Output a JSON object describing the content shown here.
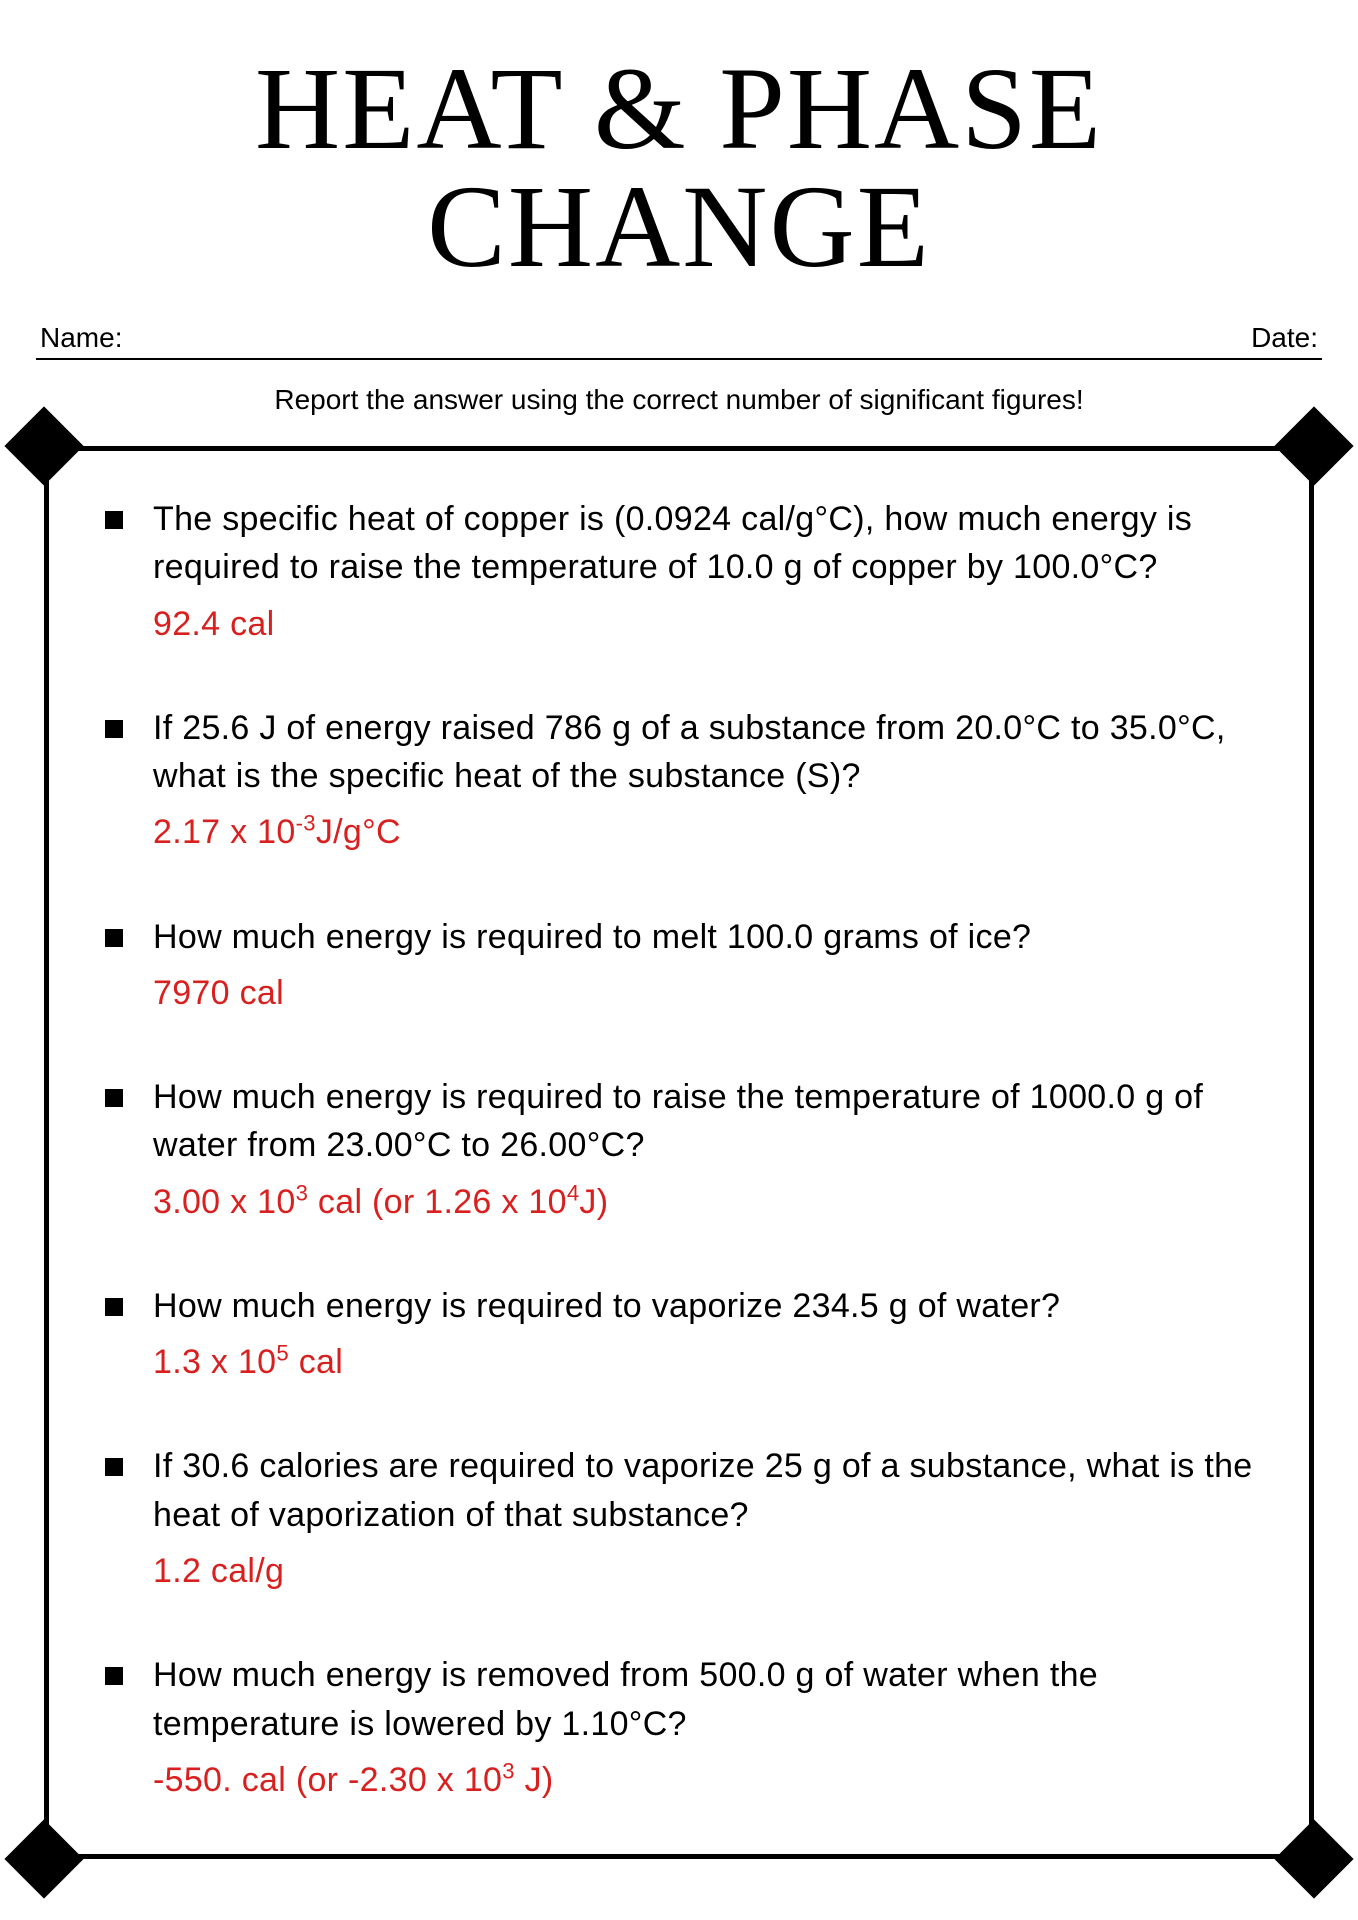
{
  "title": "HEAT & PHASE CHANGE",
  "labels": {
    "name": "Name:",
    "date": "Date:"
  },
  "instruction": "Report the answer using the correct number of significant figures!",
  "answer_color": "#d8201f",
  "text_color": "#000000",
  "background_color": "#ffffff",
  "title_fontsize": 118,
  "body_fontsize": 34,
  "problems": [
    {
      "question": "The specific heat of copper is (0.0924 cal/g°C), how much energy is required to raise the temperature of 10.0 g of copper by 100.0°C?",
      "answer_html": "92.4 cal",
      "answer_plain": "92.4 cal"
    },
    {
      "question": "If 25.6 J of energy raised 786 g of a substance from 20.0°C to 35.0°C, what is the specific heat of the substance (S)?",
      "answer_html": "2.17 x 10<sup>-3</sup>J/g°C",
      "answer_plain": "2.17 x 10^-3 J/g°C"
    },
    {
      "question": "How much energy is required to melt 100.0 grams of ice?",
      "answer_html": "7970 cal",
      "answer_plain": "7970 cal"
    },
    {
      "question": "How much energy is required to raise the temperature of 1000.0 g of water from 23.00°C to 26.00°C?",
      "answer_html": "3.00 x 10<sup>3</sup> cal (or 1.26 x 10<sup>4</sup>J)",
      "answer_plain": "3.00 x 10^3 cal (or 1.26 x 10^4 J)"
    },
    {
      "question": "How much energy is required to vaporize 234.5 g of water?",
      "answer_html": "1.3 x 10<sup>5</sup> cal",
      "answer_plain": "1.3 x 10^5 cal"
    },
    {
      "question": "If 30.6 calories are required to vaporize 25 g of a substance, what is the heat of vaporization of that substance?",
      "answer_html": "1.2 cal/g",
      "answer_plain": "1.2 cal/g"
    },
    {
      "question": "How much energy is removed from 500.0 g of water when the temperature is lowered by 1.10°C?",
      "answer_html": "-550. cal (or -2.30 x 10<sup>3</sup> J)",
      "answer_plain": "-550. cal (or -2.30 x 10^3 J)"
    }
  ]
}
